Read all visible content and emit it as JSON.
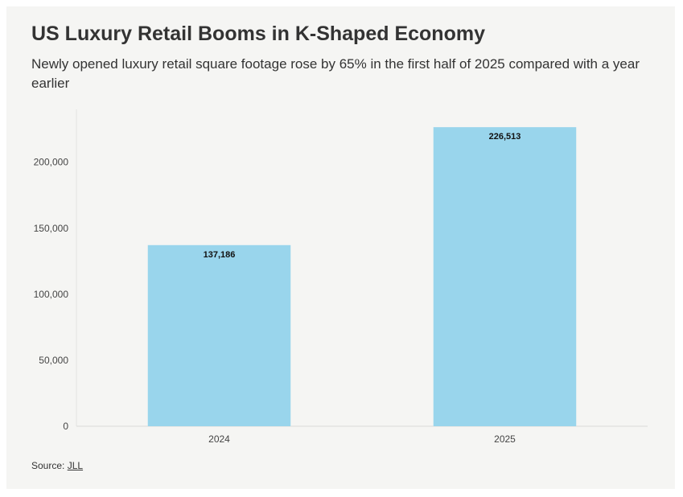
{
  "colors": {
    "bar": "#99d5ec",
    "background": "#f5f5f3",
    "text": "#333333",
    "axis_text": "#444444"
  },
  "chart_data": {
    "type": "bar",
    "title": "US Luxury Retail Booms in K-Shaped Economy",
    "subtitle": "Newly opened luxury retail square footage rose by 65% in the first half of 2025 compared with a year earlier",
    "categories": [
      "2024",
      "2025"
    ],
    "values": [
      137186,
      226513
    ],
    "value_labels": [
      "137,186",
      "226,513"
    ],
    "ylim": [
      0,
      240000
    ],
    "yticks": [
      0,
      50000,
      100000,
      150000,
      200000
    ],
    "ytick_labels": [
      "0",
      "50,000",
      "100,000",
      "150,000",
      "200,000"
    ],
    "xlabel": "",
    "ylabel": "",
    "grid": false,
    "legend": "none"
  },
  "source": {
    "prefix": "Source: ",
    "link_text": "JLL"
  }
}
